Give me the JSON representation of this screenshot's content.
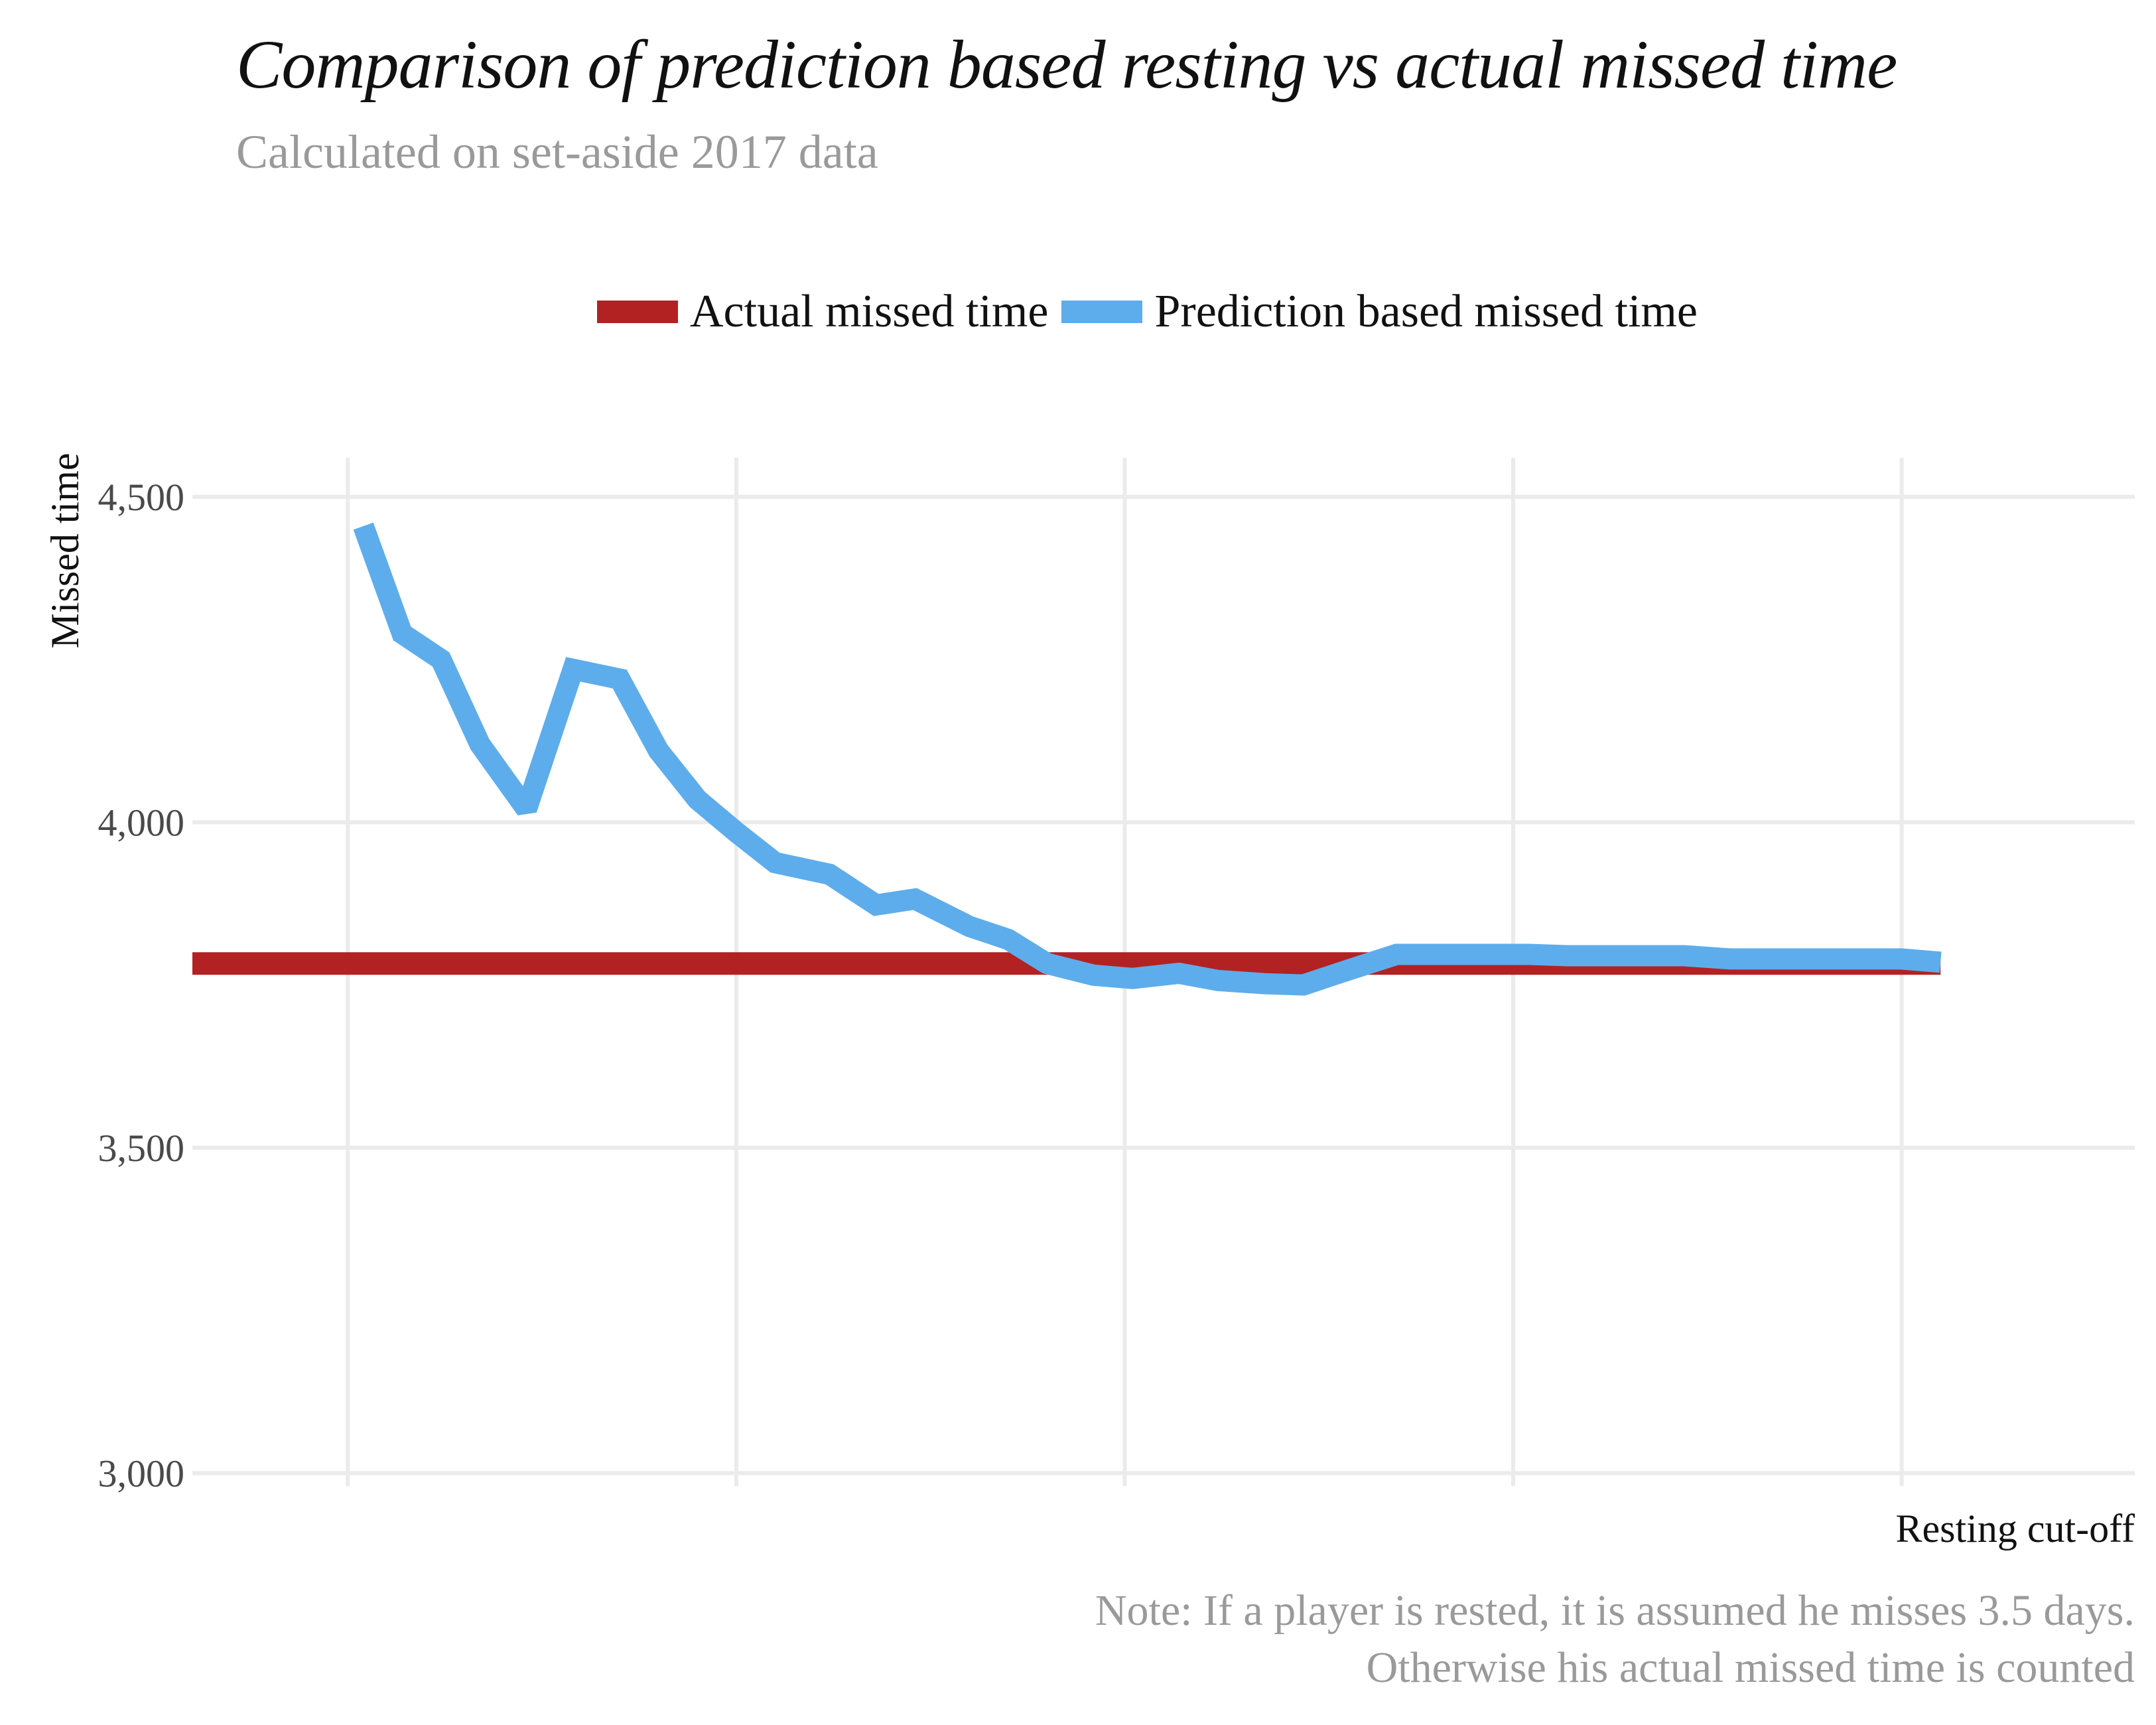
{
  "chart_data": {
    "type": "line",
    "title": "Comparison of prediction based resting vs actual missed time",
    "subtitle": "Calculated on set-aside 2017 data",
    "xlabel": "Resting cut-off",
    "ylabel": "Missed time",
    "caption_lines": [
      "Note: If a player is rested, it is assumed he misses 3.5 days.",
      "Otherwise his actual missed time is counted"
    ],
    "xlim": [
      -0.1,
      1.15
    ],
    "ylim": [
      2980,
      4560
    ],
    "yticks": [
      3000,
      3500,
      4000,
      4500
    ],
    "ytick_labels": [
      "3,000",
      "3,500",
      "4,000",
      "4,500"
    ],
    "xticks": [
      0,
      0.25,
      0.5,
      0.75,
      1.0
    ],
    "xtick_labels": [],
    "grid": true,
    "legend_position": "top",
    "series": [
      {
        "name": "Actual missed time",
        "color": "#B22222",
        "x": [
          -0.1,
          1.025
        ],
        "y": [
          3783,
          3783
        ]
      },
      {
        "name": "Prediction based missed time",
        "color": "#5DADEC",
        "x": [
          0.01,
          0.035,
          0.06,
          0.085,
          0.115,
          0.145,
          0.175,
          0.2,
          0.225,
          0.25,
          0.275,
          0.31,
          0.34,
          0.365,
          0.4,
          0.425,
          0.45,
          0.48,
          0.505,
          0.535,
          0.56,
          0.59,
          0.615,
          0.64,
          0.675,
          0.7,
          0.73,
          0.76,
          0.785,
          0.81,
          0.835,
          0.86,
          0.89,
          0.915,
          0.945,
          0.975,
          1.0,
          1.025
        ],
        "y": [
          4455,
          4290,
          4250,
          4120,
          4020,
          4235,
          4220,
          4110,
          4035,
          3985,
          3938,
          3920,
          3873,
          3882,
          3840,
          3820,
          3783,
          3765,
          3760,
          3768,
          3757,
          3752,
          3750,
          3770,
          3797,
          3797,
          3797,
          3797,
          3795,
          3795,
          3795,
          3795,
          3790,
          3790,
          3790,
          3790,
          3790,
          3785
        ]
      }
    ]
  }
}
